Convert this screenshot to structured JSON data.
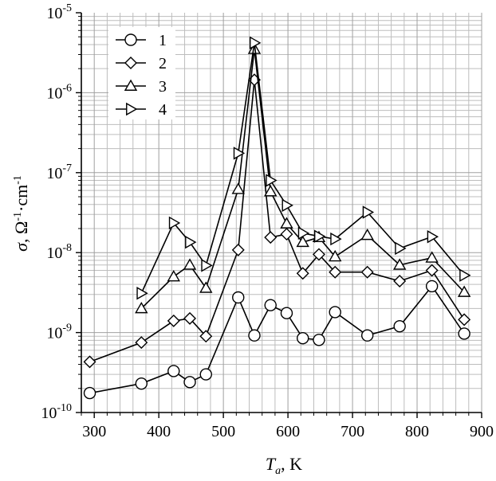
{
  "chart_data": {
    "type": "line",
    "yscale": "log",
    "grid": true,
    "xlim": [
      280,
      900
    ],
    "ylim": [
      1e-10,
      1e-05
    ],
    "xticks": [
      300,
      400,
      500,
      600,
      700,
      800,
      900
    ],
    "xtick_labels": [
      "300",
      "400",
      "500",
      "600",
      "700",
      "800",
      "900"
    ],
    "ytick_exponents": [
      -10,
      -9,
      -8,
      -7,
      -6,
      -5
    ],
    "ytick_base": "10",
    "xlabel": {
      "symbol": "T",
      "subscript": "a",
      "unit": ", K"
    },
    "ylabel": {
      "symbol": "σ",
      "rest": ", Ω",
      "exp1": "-1",
      "mid": "·cm",
      "exp2": "-1"
    },
    "legend_position": "top-left",
    "series": [
      {
        "name": "1",
        "marker": "circle",
        "x": [
          293,
          373,
          423,
          448,
          473,
          523,
          548,
          573,
          598,
          623,
          648,
          673,
          723,
          773,
          823,
          873
        ],
        "y": [
          1.75e-10,
          2.3e-10,
          3.3e-10,
          2.4e-10,
          3e-10,
          2.75e-09,
          9.2e-10,
          2.2e-09,
          1.75e-09,
          8.5e-10,
          8.1e-10,
          1.8e-09,
          9.2e-10,
          1.2e-09,
          3.8e-09,
          9.7e-10
        ]
      },
      {
        "name": "2",
        "marker": "diamond",
        "x": [
          293,
          373,
          423,
          448,
          473,
          523,
          548,
          573,
          598,
          623,
          648,
          673,
          723,
          773,
          823,
          873
        ],
        "y": [
          4.3e-10,
          7.5e-10,
          1.4e-09,
          1.5e-09,
          9e-10,
          1.08e-08,
          1.45e-06,
          1.55e-08,
          1.7e-08,
          5.5e-09,
          9.5e-09,
          5.7e-09,
          5.7e-09,
          4.4e-09,
          6e-09,
          1.45e-09
        ]
      },
      {
        "name": "3",
        "marker": "triangle-up",
        "x": [
          373,
          423,
          448,
          473,
          523,
          548,
          573,
          598,
          623,
          648,
          673,
          723,
          773,
          823,
          873
        ],
        "y": [
          2e-09,
          5e-09,
          7e-09,
          3.6e-09,
          6.2e-08,
          3.5e-06,
          5.8e-08,
          2.3e-08,
          1.35e-08,
          1.55e-08,
          8.9e-09,
          1.65e-08,
          7e-09,
          8.6e-09,
          3.2e-09
        ]
      },
      {
        "name": "4",
        "marker": "triangle-right",
        "x": [
          373,
          423,
          448,
          473,
          523,
          548,
          573,
          598,
          623,
          648,
          673,
          723,
          773,
          823,
          873
        ],
        "y": [
          3.1e-09,
          2.35e-08,
          1.35e-08,
          6.9e-09,
          1.75e-07,
          4.2e-06,
          8e-08,
          3.9e-08,
          1.75e-08,
          1.6e-08,
          1.48e-08,
          3.2e-08,
          1.13e-08,
          1.58e-08,
          5.2e-09
        ]
      }
    ]
  }
}
